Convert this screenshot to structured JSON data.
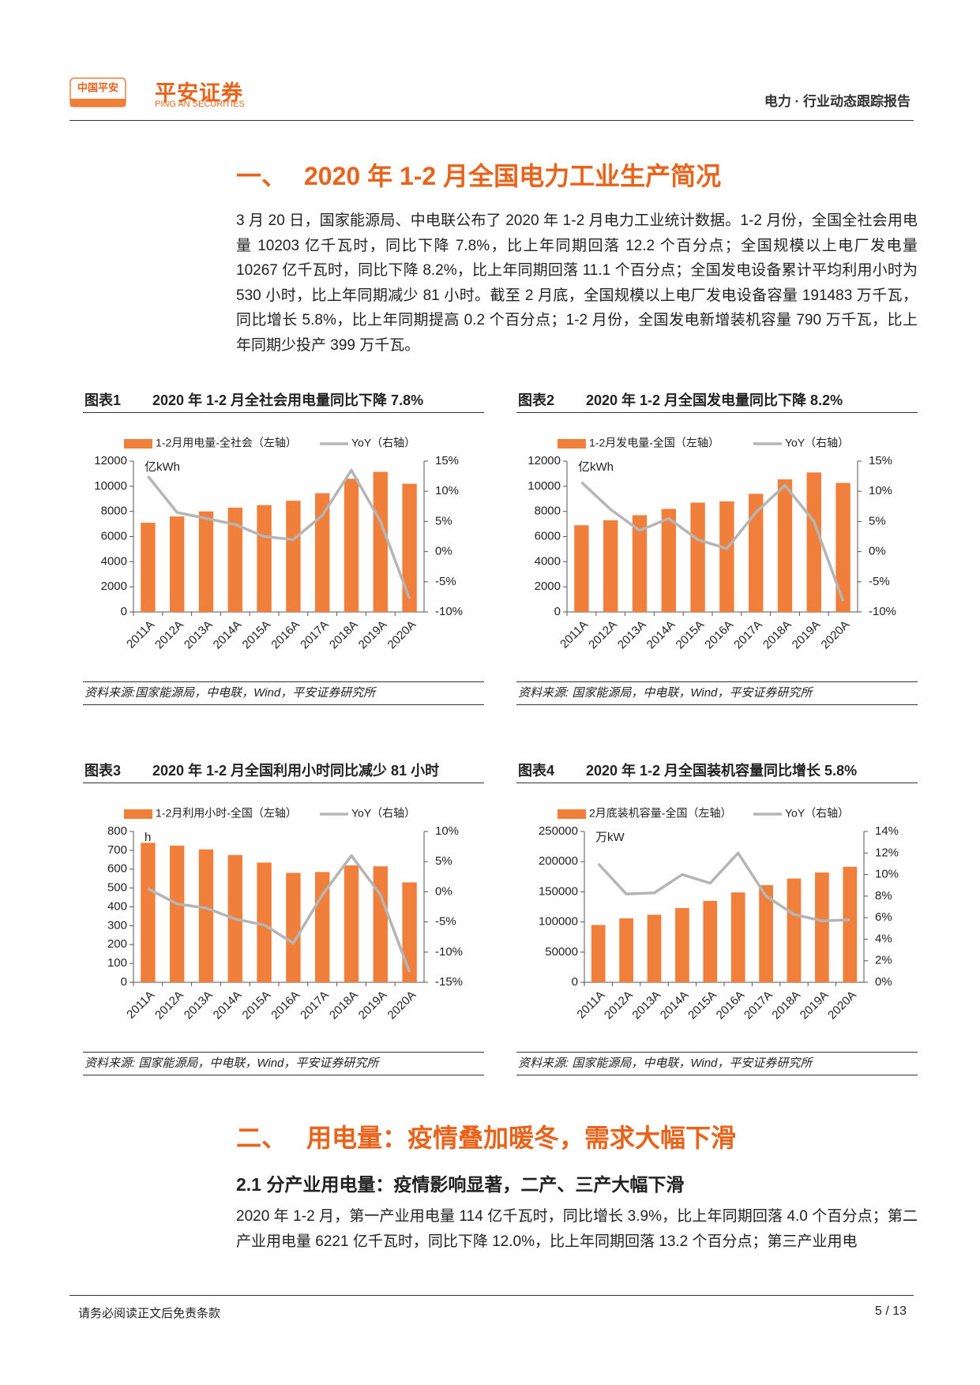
{
  "header": {
    "logo_text": "中国平安",
    "brand": "平安证券",
    "brand_en": "PING AN SECURITIES",
    "report": "电力 · 行业动态跟踪报告"
  },
  "section1": {
    "number": "一、",
    "title": "2020 年 1-2 月全国电力工业生产简况",
    "paragraph": "3 月 20 日，国家能源局、中电联公布了 2020 年 1-2 月电力工业统计数据。1-2 月份，全国全社会用电量 10203 亿千瓦时，同比下降 7.8%，比上年同期回落 12.2 个百分点；全国规模以上电厂发电量 10267 亿千瓦时，同比下降 8.2%，比上年同期回落 11.1 个百分点；全国发电设备累计平均利用小时为 530 小时，比上年同期减少 81 小时。截至 2 月底，全国规模以上电厂发电设备容量 191483 万千瓦，同比增长 5.8%，比上年同期提高 0.2 个百分点；1-2 月份，全国发电新增装机容量 790 万千瓦，比上年同期少投产 399 万千瓦。"
  },
  "chart_data": [
    {
      "type": "bar",
      "label": "图表1",
      "title": "2020 年 1-2 月全社会用电量同比下降 7.8%",
      "unit": "亿kWh",
      "categories": [
        "2011A",
        "2012A",
        "2013A",
        "2014A",
        "2015A",
        "2016A",
        "2017A",
        "2018A",
        "2019A",
        "2020A"
      ],
      "series": [
        {
          "name": "1-2月用电量-全社会（左轴）",
          "color": "#f07f3c",
          "values": [
            7100,
            7600,
            8000,
            8300,
            8500,
            8850,
            9450,
            10600,
            11150,
            10203
          ]
        },
        {
          "name": "YoY（右轴）",
          "type": "line",
          "axis": "y2",
          "color": "#b5b5b5",
          "values": [
            12.5,
            6.5,
            5.5,
            4.5,
            2.5,
            2.0,
            6.0,
            13.5,
            5.0,
            -7.8
          ]
        }
      ],
      "ylim": [
        0,
        12000
      ],
      "yticks": [
        0,
        2000,
        4000,
        6000,
        8000,
        10000,
        12000
      ],
      "y2lim": [
        -10,
        15
      ],
      "y2ticks": [
        {
          "value": -10,
          "label": "-10%"
        },
        {
          "value": -5,
          "label": "-5%"
        },
        {
          "value": 0,
          "label": "0%"
        },
        {
          "value": 5,
          "label": "5%"
        },
        {
          "value": 10,
          "label": "10%"
        },
        {
          "value": 15,
          "label": "15%"
        }
      ],
      "source": "资料来源:国家能源局，中电联，Wind，平安证券研究所"
    },
    {
      "type": "bar",
      "label": "图表2",
      "title": "2020 年 1-2 月全国发电量同比下降 8.2%",
      "unit": "亿kWh",
      "categories": [
        "2011A",
        "2012A",
        "2013A",
        "2014A",
        "2015A",
        "2016A",
        "2017A",
        "2018A",
        "2019A",
        "2020A"
      ],
      "series": [
        {
          "name": "1-2月发电量-全国（左轴）",
          "color": "#f07f3c",
          "values": [
            6900,
            7300,
            7700,
            8200,
            8700,
            8800,
            9400,
            10550,
            11100,
            10267
          ]
        },
        {
          "name": "YoY（右轴）",
          "type": "line",
          "axis": "y2",
          "color": "#b5b5b5",
          "values": [
            11.5,
            7.0,
            3.5,
            5.5,
            2.0,
            0.5,
            6.5,
            11.0,
            5.0,
            -8.2
          ]
        }
      ],
      "ylim": [
        0,
        12000
      ],
      "yticks": [
        0,
        2000,
        4000,
        6000,
        8000,
        10000,
        12000
      ],
      "y2lim": [
        -10,
        15
      ],
      "y2ticks": [
        {
          "value": -10,
          "label": "-10%"
        },
        {
          "value": -5,
          "label": "-5%"
        },
        {
          "value": 0,
          "label": "0%"
        },
        {
          "value": 5,
          "label": "5%"
        },
        {
          "value": 10,
          "label": "10%"
        },
        {
          "value": 15,
          "label": "15%"
        }
      ],
      "source": "资料来源: 国家能源局，中电联，Wind，平安证券研究所"
    },
    {
      "type": "bar",
      "label": "图表3",
      "title": "2020 年 1-2 月全国利用小时同比减少 81 小时",
      "unit": "h",
      "categories": [
        "2011A",
        "2012A",
        "2013A",
        "2014A",
        "2015A",
        "2016A",
        "2017A",
        "2018A",
        "2019A",
        "2020A"
      ],
      "series": [
        {
          "name": "1-2月利用小时-全国（左轴）",
          "color": "#f07f3c",
          "values": [
            740,
            725,
            705,
            675,
            635,
            580,
            585,
            620,
            615,
            530
          ]
        },
        {
          "name": "YoY（右轴）",
          "type": "line",
          "axis": "y2",
          "color": "#b5b5b5",
          "values": [
            0.5,
            -2.0,
            -2.7,
            -4.5,
            -5.5,
            -8.5,
            -0.5,
            6.0,
            -0.5,
            -13.3
          ]
        }
      ],
      "ylim": [
        0,
        800
      ],
      "yticks": [
        0,
        100,
        200,
        300,
        400,
        500,
        600,
        700,
        800
      ],
      "y2lim": [
        -15,
        10
      ],
      "y2ticks": [
        {
          "value": -15,
          "label": "-15%"
        },
        {
          "value": -10,
          "label": "-10%"
        },
        {
          "value": -5,
          "label": "-5%"
        },
        {
          "value": 0,
          "label": "0%"
        },
        {
          "value": 5,
          "label": "5%"
        },
        {
          "value": 10,
          "label": "10%"
        }
      ],
      "source": "资料来源: 国家能源局，中电联，Wind，平安证券研究所"
    },
    {
      "type": "bar",
      "label": "图表4",
      "title": "2020 年 1-2 月全国装机容量同比增长 5.8%",
      "unit": "万kW",
      "categories": [
        "2011A",
        "2012A",
        "2013A",
        "2014A",
        "2015A",
        "2016A",
        "2017A",
        "2018A",
        "2019A",
        "2020A"
      ],
      "series": [
        {
          "name": "2月底装机容量-全国（左轴）",
          "color": "#f07f3c",
          "values": [
            95000,
            106000,
            112000,
            123000,
            135000,
            149000,
            161000,
            172000,
            182000,
            191483
          ]
        },
        {
          "name": "YoY（右轴）",
          "type": "line",
          "axis": "y2",
          "color": "#b5b5b5",
          "values": [
            11.0,
            8.2,
            8.3,
            10.0,
            9.2,
            12.0,
            8.0,
            6.3,
            5.7,
            5.8
          ]
        }
      ],
      "ylim": [
        0,
        250000
      ],
      "yticks": [
        0,
        50000,
        100000,
        150000,
        200000,
        250000
      ],
      "y2lim": [
        0,
        14
      ],
      "y2ticks": [
        {
          "value": 0,
          "label": "0%"
        },
        {
          "value": 2,
          "label": "2%"
        },
        {
          "value": 4,
          "label": "4%"
        },
        {
          "value": 6,
          "label": "6%"
        },
        {
          "value": 8,
          "label": "8%"
        },
        {
          "value": 10,
          "label": "10%"
        },
        {
          "value": 12,
          "label": "12%"
        },
        {
          "value": 14,
          "label": "14%"
        }
      ],
      "source": "资料来源: 国家能源局，中电联，Wind，平安证券研究所"
    }
  ],
  "section2": {
    "number": "二、",
    "title": "用电量：疫情叠加暖冬，需求大幅下滑",
    "subsection": "2.1 分产业用电量：疫情影响显著，二产、三产大幅下滑",
    "paragraph": "2020 年 1-2 月，第一产业用电量 114 亿千瓦时，同比增长 3.9%，比上年同期回落 4.0 个百分点；第二产业用电量 6221 亿千瓦时，同比下降 12.0%，比上年同期回落 13.2 个百分点；第三产业用电"
  },
  "footer": {
    "disclaimer": "请务必阅读正文后免责条款",
    "page": "5 / 13"
  }
}
